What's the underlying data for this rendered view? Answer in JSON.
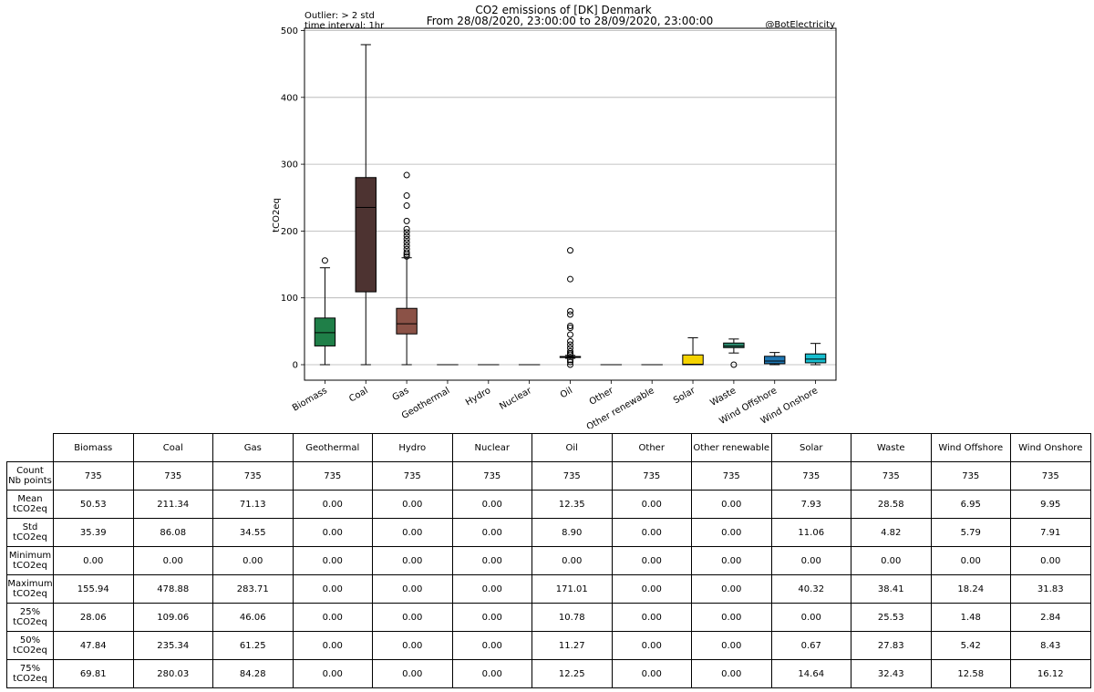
{
  "header": {
    "title_line1": "CO2 emissions of [DK] Denmark",
    "title_line2": "From 28/08/2020, 23:00:00 to 28/09/2020, 23:00:00",
    "note_line1": "Outlier: > 2 std",
    "note_line2": "time interval: 1hr",
    "credit": "@BotElectricity"
  },
  "chart_data": {
    "type": "box",
    "title": "CO2 emissions of [DK] Denmark",
    "subtitle": "From 28/08/2020, 23:00:00 to 28/09/2020, 23:00:00",
    "ylabel": "tCO2eq",
    "xlabel": "",
    "ylim": [
      -22,
      500
    ],
    "yticks": [
      0,
      100,
      200,
      300,
      400,
      500
    ],
    "grid": "horizontal",
    "categories": [
      "Biomass",
      "Coal",
      "Gas",
      "Geothermal",
      "Hydro",
      "Nuclear",
      "Oil",
      "Other",
      "Other renewable",
      "Solar",
      "Waste",
      "Wind Offshore",
      "Wind Onshore"
    ],
    "colors": [
      "#1f7f48",
      "#4d3331",
      "#8b5247",
      "#555555",
      "#555555",
      "#555555",
      "#555555",
      "#555555",
      "#555555",
      "#f5d300",
      "#2a8a6e",
      "#1f77b4",
      "#17becf"
    ],
    "boxes": [
      {
        "q1": 28.06,
        "median": 47.84,
        "q3": 69.81,
        "whislo": 0.0,
        "whishi": 145,
        "fliers": [
          155.94
        ]
      },
      {
        "q1": 109.06,
        "median": 235.34,
        "q3": 280.03,
        "whislo": 0.0,
        "whishi": 478.88,
        "fliers": []
      },
      {
        "q1": 46.06,
        "median": 61.25,
        "q3": 84.28,
        "whislo": 0.0,
        "whishi": 160,
        "fliers": [
          283.71,
          253,
          238,
          215,
          203,
          198,
          193,
          188,
          183,
          178,
          173,
          168,
          165,
          162
        ]
      },
      {
        "q1": 0,
        "median": 0,
        "q3": 0,
        "whislo": 0,
        "whishi": 0,
        "fliers": []
      },
      {
        "q1": 0,
        "median": 0,
        "q3": 0,
        "whislo": 0,
        "whishi": 0,
        "fliers": []
      },
      {
        "q1": 0,
        "median": 0,
        "q3": 0,
        "whislo": 0,
        "whishi": 0,
        "fliers": []
      },
      {
        "q1": 10.78,
        "median": 11.27,
        "q3": 12.25,
        "whislo": 9.5,
        "whishi": 14.0,
        "fliers": [
          171.01,
          128,
          80,
          75,
          58,
          55,
          45,
          35,
          30,
          25,
          20,
          17,
          15,
          7,
          4,
          0
        ]
      },
      {
        "q1": 0,
        "median": 0,
        "q3": 0,
        "whislo": 0,
        "whishi": 0,
        "fliers": []
      },
      {
        "q1": 0,
        "median": 0,
        "q3": 0,
        "whislo": 0,
        "whishi": 0,
        "fliers": []
      },
      {
        "q1": 0.0,
        "median": 0.67,
        "q3": 14.64,
        "whislo": 0.0,
        "whishi": 40.32,
        "fliers": []
      },
      {
        "q1": 25.53,
        "median": 27.83,
        "q3": 32.43,
        "whislo": 17.5,
        "whishi": 38.41,
        "fliers": [
          0.0
        ]
      },
      {
        "q1": 1.48,
        "median": 5.42,
        "q3": 12.58,
        "whislo": 0.0,
        "whishi": 18.24,
        "fliers": []
      },
      {
        "q1": 2.84,
        "median": 8.43,
        "q3": 16.12,
        "whislo": 0.0,
        "whishi": 31.83,
        "fliers": []
      }
    ]
  },
  "table": {
    "columns": [
      "Biomass",
      "Coal",
      "Gas",
      "Geothermal",
      "Hydro",
      "Nuclear",
      "Oil",
      "Other",
      "Other renewable",
      "Solar",
      "Waste",
      "Wind Offshore",
      "Wind Onshore"
    ],
    "rows": [
      {
        "label1": "Count",
        "label2": "Nb points",
        "values": [
          "735",
          "735",
          "735",
          "735",
          "735",
          "735",
          "735",
          "735",
          "735",
          "735",
          "735",
          "735",
          "735"
        ]
      },
      {
        "label1": "Mean",
        "label2": "tCO2eq",
        "values": [
          "50.53",
          "211.34",
          "71.13",
          "0.00",
          "0.00",
          "0.00",
          "12.35",
          "0.00",
          "0.00",
          "7.93",
          "28.58",
          "6.95",
          "9.95"
        ]
      },
      {
        "label1": "Std",
        "label2": "tCO2eq",
        "values": [
          "35.39",
          "86.08",
          "34.55",
          "0.00",
          "0.00",
          "0.00",
          "8.90",
          "0.00",
          "0.00",
          "11.06",
          "4.82",
          "5.79",
          "7.91"
        ]
      },
      {
        "label1": "Minimum",
        "label2": "tCO2eq",
        "values": [
          "0.00",
          "0.00",
          "0.00",
          "0.00",
          "0.00",
          "0.00",
          "0.00",
          "0.00",
          "0.00",
          "0.00",
          "0.00",
          "0.00",
          "0.00"
        ]
      },
      {
        "label1": "Maximum",
        "label2": "tCO2eq",
        "values": [
          "155.94",
          "478.88",
          "283.71",
          "0.00",
          "0.00",
          "0.00",
          "171.01",
          "0.00",
          "0.00",
          "40.32",
          "38.41",
          "18.24",
          "31.83"
        ]
      },
      {
        "label1": "25%",
        "label2": "tCO2eq",
        "values": [
          "28.06",
          "109.06",
          "46.06",
          "0.00",
          "0.00",
          "0.00",
          "10.78",
          "0.00",
          "0.00",
          "0.00",
          "25.53",
          "1.48",
          "2.84"
        ]
      },
      {
        "label1": "50%",
        "label2": "tCO2eq",
        "values": [
          "47.84",
          "235.34",
          "61.25",
          "0.00",
          "0.00",
          "0.00",
          "11.27",
          "0.00",
          "0.00",
          "0.67",
          "27.83",
          "5.42",
          "8.43"
        ]
      },
      {
        "label1": "75%",
        "label2": "tCO2eq",
        "values": [
          "69.81",
          "280.03",
          "84.28",
          "0.00",
          "0.00",
          "0.00",
          "12.25",
          "0.00",
          "0.00",
          "14.64",
          "32.43",
          "12.58",
          "16.12"
        ]
      }
    ]
  }
}
